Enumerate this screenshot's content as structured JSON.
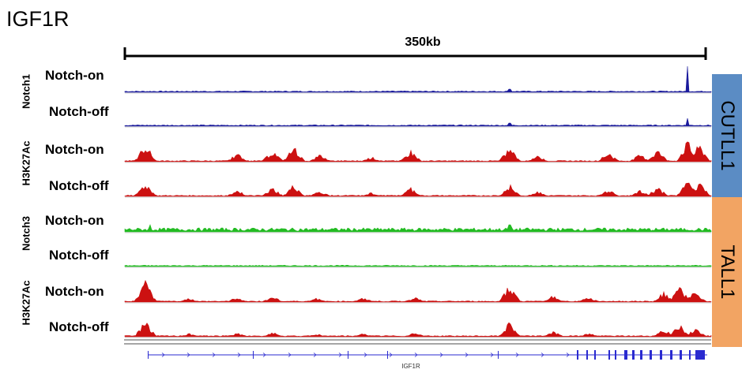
{
  "gene_title": "IGF1R",
  "scale_bar": {
    "label": "350kb"
  },
  "colors": {
    "notch1": "#1a1a9c",
    "h3k27ac": "#cc1111",
    "notch3": "#22bb22",
    "cutll1_panel": "#5b8cc4",
    "tall1_panel": "#f2a463",
    "gene_model": "#2a2ad0"
  },
  "panels": [
    {
      "label": "CUTLL1"
    },
    {
      "label": "TALL1"
    }
  ],
  "groups": [
    {
      "label": "Notch1"
    },
    {
      "label": "H3K27Ac"
    },
    {
      "label": "Notch3"
    },
    {
      "label": "H3K27Ac"
    }
  ],
  "tracks": [
    {
      "condition": "Notch-on"
    },
    {
      "condition": "Notch-off"
    },
    {
      "condition": "Notch-on"
    },
    {
      "condition": "Notch-off"
    },
    {
      "condition": "Notch-on"
    },
    {
      "condition": "Notch-off"
    },
    {
      "condition": "Notch-on"
    },
    {
      "condition": "Notch-off"
    }
  ],
  "gene_model": {
    "name": "IGF1R"
  }
}
